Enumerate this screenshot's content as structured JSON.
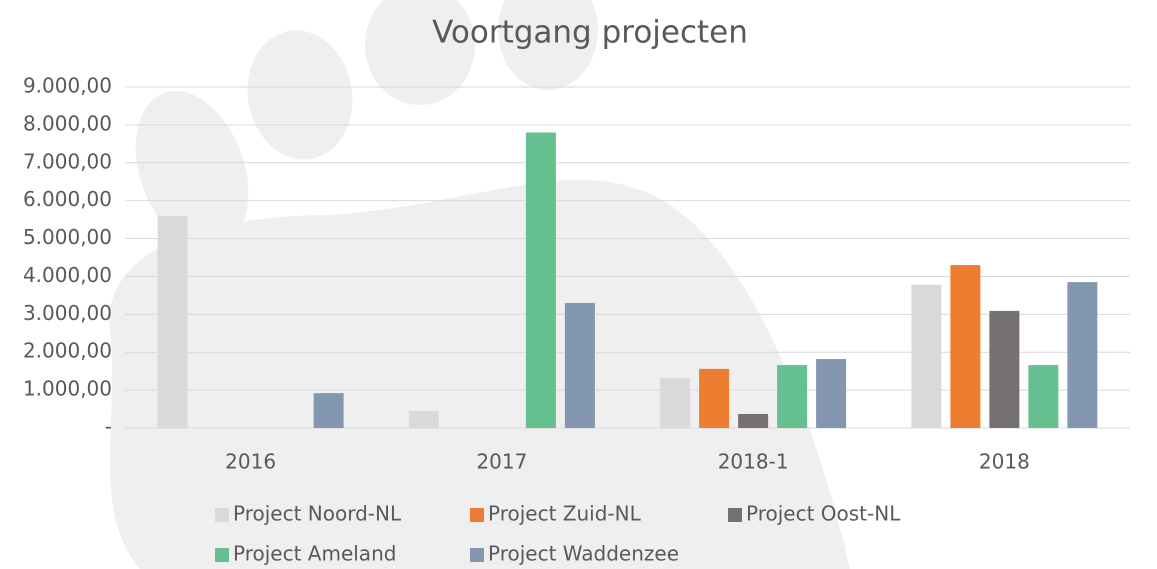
{
  "chart_data": {
    "type": "bar",
    "title": "Voortgang projecten",
    "categories": [
      "2016",
      "2017",
      "2018-1",
      "2018"
    ],
    "series": [
      {
        "name": "Project Noord-NL",
        "color": "#d9d9d9",
        "values": [
          5600,
          450,
          1320,
          3780
        ]
      },
      {
        "name": "Project Zuid-NL",
        "color": "#ed7d31",
        "values": [
          0,
          0,
          1560,
          4300
        ]
      },
      {
        "name": "Project Oost-NL",
        "color": "#767171",
        "values": [
          0,
          0,
          370,
          3090
        ]
      },
      {
        "name": "Project Ameland",
        "color": "#66bf8f",
        "values": [
          0,
          7800,
          1660,
          1660
        ]
      },
      {
        "name": "Project Waddenzee",
        "color": "#8497b0",
        "values": [
          920,
          3300,
          1820,
          3850
        ]
      }
    ],
    "ylim": [
      0,
      9000
    ],
    "yticks": [
      {
        "value": 0,
        "label": "-"
      },
      {
        "value": 1000,
        "label": "1.000,00"
      },
      {
        "value": 2000,
        "label": "2.000,00"
      },
      {
        "value": 3000,
        "label": "3.000,00"
      },
      {
        "value": 4000,
        "label": "4.000,00"
      },
      {
        "value": 5000,
        "label": "5.000,00"
      },
      {
        "value": 6000,
        "label": "6.000,00"
      },
      {
        "value": 7000,
        "label": "7.000,00"
      },
      {
        "value": 8000,
        "label": "8.000,00"
      },
      {
        "value": 9000,
        "label": "9.000,00"
      }
    ],
    "grid": true,
    "legend": "bottom"
  }
}
